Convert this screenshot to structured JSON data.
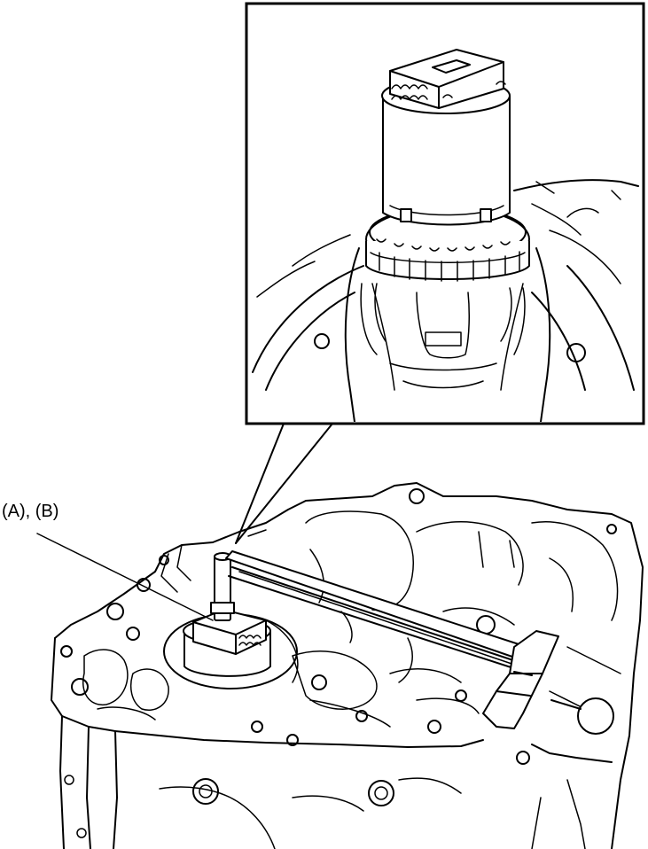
{
  "callout": {
    "label": "(A), (B)"
  }
}
